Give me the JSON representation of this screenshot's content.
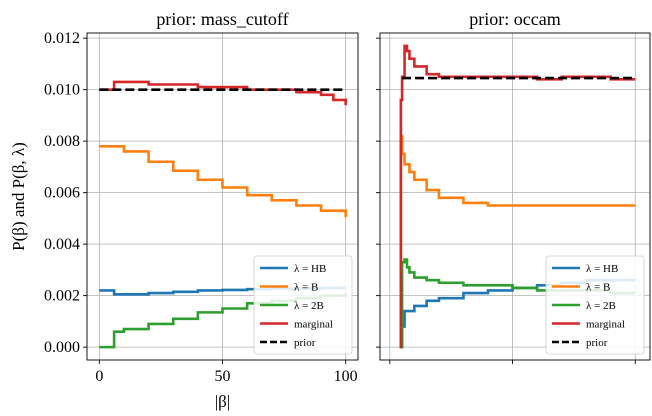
{
  "figure": {
    "ylabel": "P(β) and P(β, λ)",
    "xlabel": "|β|"
  },
  "chart_data": [
    {
      "type": "line",
      "title": "prior: mass_cutoff",
      "ylim": [
        -0.0005,
        0.0122
      ],
      "xlim": [
        -5,
        105
      ],
      "xticks": [
        "0",
        "50",
        "100"
      ],
      "xtick_values": [
        0,
        50,
        100
      ],
      "yticks": [
        "0.000",
        "0.002",
        "0.004",
        "0.006",
        "0.008",
        "0.010",
        "0.012"
      ],
      "ytick_values": [
        0,
        0.002,
        0.004,
        0.006,
        0.008,
        0.01,
        0.012
      ],
      "grid": true,
      "legend_position": "lower-right",
      "colors": {
        "HB": "#1f77b4",
        "B": "#ff7f0e",
        "2B": "#2ca02c",
        "marginal": "#d62728",
        "prior": "#000000"
      },
      "series": [
        {
          "name": "λ = HB",
          "key": "HB",
          "x": [
            0,
            3,
            6,
            10,
            20,
            30,
            40,
            50,
            60,
            70,
            80,
            90,
            100
          ],
          "y": [
            0.0022,
            0.0022,
            0.00205,
            0.00205,
            0.0021,
            0.00215,
            0.0022,
            0.00222,
            0.00225,
            0.00227,
            0.00228,
            0.0023,
            0.0023
          ]
        },
        {
          "name": "λ = B",
          "key": "B",
          "x": [
            0,
            5,
            10,
            20,
            30,
            40,
            50,
            60,
            70,
            80,
            90,
            100
          ],
          "y": [
            0.0078,
            0.0078,
            0.0076,
            0.0072,
            0.00685,
            0.0065,
            0.0062,
            0.0059,
            0.0057,
            0.0055,
            0.0053,
            0.00505
          ]
        },
        {
          "name": "λ = 2B",
          "key": "2B",
          "x": [
            0,
            6,
            6,
            10,
            20,
            30,
            40,
            50,
            60,
            70,
            80,
            90,
            100
          ],
          "y": [
            0.0,
            0.0001,
            0.0006,
            0.0007,
            0.0009,
            0.0011,
            0.00135,
            0.0015,
            0.0017,
            0.0018,
            0.0019,
            0.002,
            0.0021
          ]
        },
        {
          "name": "marginal",
          "key": "marginal",
          "x": [
            0,
            6,
            6,
            10,
            20,
            30,
            40,
            50,
            60,
            70,
            80,
            90,
            95,
            100
          ],
          "y": [
            0.01,
            0.01,
            0.0103,
            0.0103,
            0.0102,
            0.0102,
            0.0101,
            0.0101,
            0.01,
            0.01,
            0.0099,
            0.0098,
            0.0096,
            0.0094
          ]
        },
        {
          "name": "prior",
          "key": "prior",
          "dashed": true,
          "x": [
            0,
            100
          ],
          "y": [
            0.01,
            0.01
          ]
        }
      ]
    },
    {
      "type": "line",
      "title": "prior: occam",
      "ylim": [
        -0.0005,
        0.0122
      ],
      "xlim": [
        -4,
        106
      ],
      "xticks": [
        "",
        "",
        ""
      ],
      "xtick_values": [
        0,
        50,
        100
      ],
      "yticks": [
        "",
        "",
        "",
        "",
        "",
        "",
        ""
      ],
      "ytick_values": [
        0,
        0.002,
        0.004,
        0.006,
        0.008,
        0.01,
        0.012
      ],
      "grid": true,
      "legend_position": "lower-right",
      "colors": {
        "HB": "#1f77b4",
        "B": "#ff7f0e",
        "2B": "#2ca02c",
        "marginal": "#d62728",
        "prior": "#000000"
      },
      "series": [
        {
          "name": "λ = HB",
          "key": "HB",
          "x": [
            4,
            5,
            6,
            8,
            10,
            15,
            20,
            30,
            40,
            50,
            60,
            70,
            80,
            90,
            100
          ],
          "y": [
            0.0,
            0.0008,
            0.0014,
            0.0014,
            0.0016,
            0.0018,
            0.0019,
            0.0021,
            0.0022,
            0.0023,
            0.0024,
            0.0025,
            0.0026,
            0.0026,
            0.0026
          ]
        },
        {
          "name": "λ = B",
          "key": "B",
          "x": [
            4,
            4.5,
            5,
            6,
            8,
            10,
            15,
            20,
            30,
            40,
            50,
            60,
            70,
            80,
            90,
            100
          ],
          "y": [
            0.0,
            0.0082,
            0.0075,
            0.0071,
            0.0068,
            0.0065,
            0.0061,
            0.0058,
            0.0056,
            0.0055,
            0.0055,
            0.0055,
            0.0055,
            0.0055,
            0.0055,
            0.0055
          ]
        },
        {
          "name": "λ = 2B",
          "key": "2B",
          "x": [
            4,
            5,
            6,
            7,
            8,
            10,
            15,
            20,
            30,
            40,
            50,
            60,
            70,
            80,
            90,
            100
          ],
          "y": [
            0.0,
            0.0033,
            0.0034,
            0.0031,
            0.0029,
            0.0027,
            0.0026,
            0.0025,
            0.0024,
            0.0024,
            0.0023,
            0.0022,
            0.0022,
            0.0022,
            0.0021,
            0.0021
          ]
        },
        {
          "name": "marginal",
          "key": "marginal",
          "x": [
            4,
            4.5,
            5,
            6,
            7,
            8,
            10,
            15,
            20,
            30,
            40,
            50,
            60,
            70,
            80,
            90,
            100
          ],
          "y": [
            0.0,
            0.0096,
            0.0105,
            0.0117,
            0.0115,
            0.0112,
            0.0109,
            0.0106,
            0.0105,
            0.0105,
            0.0105,
            0.0105,
            0.0104,
            0.0105,
            0.0105,
            0.0104,
            0.0104
          ]
        },
        {
          "name": "prior",
          "key": "prior",
          "dashed": true,
          "x": [
            5,
            100
          ],
          "y": [
            0.01045,
            0.01045
          ]
        }
      ]
    }
  ]
}
